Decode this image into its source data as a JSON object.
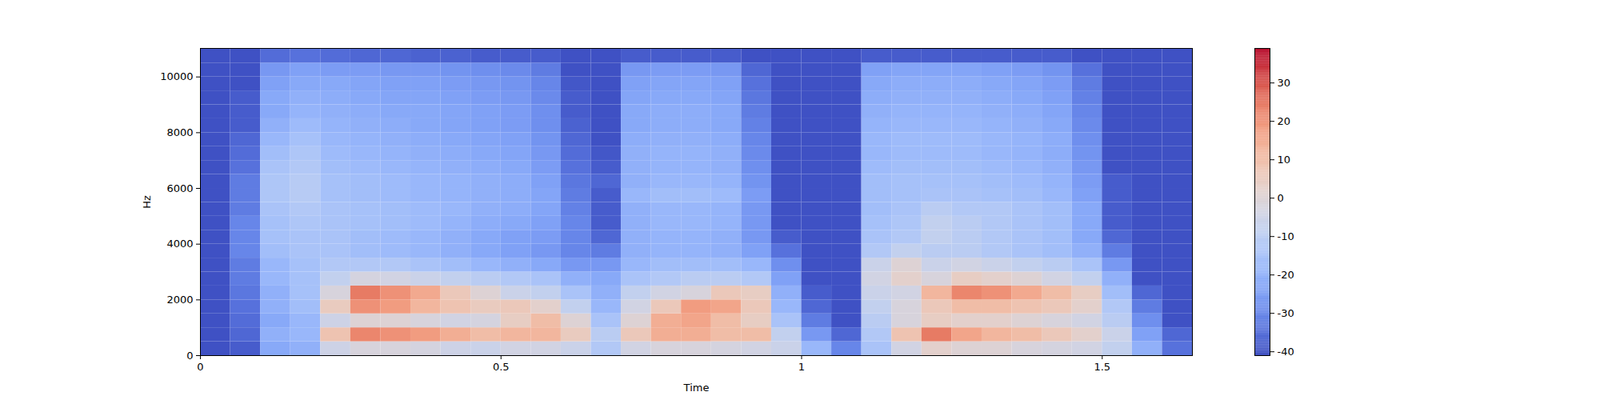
{
  "chart_data": {
    "type": "heatmap",
    "x_label": "Time",
    "y_label": "Hz",
    "xlim": [
      0,
      1.65
    ],
    "ylim": [
      0,
      11025
    ],
    "xticks": [
      0,
      0.5,
      1,
      1.5
    ],
    "yticks": [
      0,
      2000,
      4000,
      6000,
      8000,
      10000
    ],
    "time_bins": [
      0,
      0.05,
      0.1,
      0.15,
      0.2,
      0.25,
      0.3,
      0.35,
      0.4,
      0.45,
      0.5,
      0.55,
      0.6,
      0.65,
      0.7,
      0.75,
      0.8,
      0.85,
      0.9,
      0.95,
      1,
      1.05,
      1.1,
      1.15,
      1.2,
      1.25,
      1.3,
      1.35,
      1.4,
      1.45,
      1.5,
      1.55,
      1.6,
      1.65
    ],
    "freq_bins": [
      0,
      500,
      1000,
      1500,
      2000,
      2500,
      3000,
      3500,
      4000,
      4500,
      5000,
      5500,
      6000,
      6500,
      7000,
      7500,
      8000,
      8500,
      9000,
      9500,
      10000,
      10500,
      11025
    ],
    "values": [
      [
        -40,
        -40,
        -40,
        -40,
        -40,
        -40,
        -40,
        -40,
        -40,
        -40,
        -40,
        -40,
        -40,
        -40,
        -40,
        -40,
        -40,
        -40,
        -40,
        -40,
        -40,
        -40
      ],
      [
        -38,
        -36,
        -35,
        -34,
        -33,
        -32,
        -32,
        -30,
        -30,
        -30,
        -32,
        -32,
        -32,
        -34,
        -35,
        -36,
        -38,
        -38,
        -38,
        -40,
        -40,
        -40
      ],
      [
        -22,
        -20,
        -22,
        -20,
        -20,
        -18,
        -18,
        -16,
        -15,
        -15,
        -14,
        -13,
        -13,
        -14,
        -16,
        -18,
        -20,
        -22,
        -22,
        -24,
        -26,
        -35
      ],
      [
        -20,
        -18,
        -18,
        -16,
        -15,
        -15,
        -15,
        -14,
        -14,
        -13,
        -12,
        -11,
        -11,
        -12,
        -13,
        -15,
        -17,
        -19,
        -20,
        -22,
        -24,
        -34
      ],
      [
        -5,
        8,
        -5,
        5,
        -2,
        -8,
        -12,
        -14,
        -14,
        -14,
        -14,
        -15,
        -15,
        -16,
        -17,
        -18,
        -19,
        -20,
        -21,
        -22,
        -25,
        -35
      ],
      [
        -2,
        22,
        0,
        20,
        24,
        -3,
        -12,
        -16,
        -16,
        -15,
        -15,
        -16,
        -16,
        -17,
        -18,
        -19,
        -20,
        -21,
        -22,
        -23,
        -25,
        -36
      ],
      [
        -2,
        20,
        0,
        18,
        20,
        -4,
        -12,
        -17,
        -17,
        -16,
        -16,
        -17,
        -17,
        -18,
        -19,
        -20,
        -21,
        -22,
        -23,
        -24,
        -26,
        -36
      ],
      [
        -3,
        18,
        -2,
        12,
        15,
        -6,
        -14,
        -18,
        -18,
        -17,
        -17,
        -18,
        -18,
        -19,
        -20,
        -21,
        -22,
        -22,
        -23,
        -24,
        -26,
        -37
      ],
      [
        -5,
        14,
        -4,
        8,
        6,
        -8,
        -16,
        -20,
        -20,
        -19,
        -18,
        -19,
        -19,
        -20,
        -21,
        -22,
        -23,
        -23,
        -24,
        -25,
        -27,
        -37
      ],
      [
        -6,
        10,
        -3,
        5,
        0,
        -10,
        -18,
        -22,
        -22,
        -21,
        -20,
        -20,
        -20,
        -21,
        -22,
        -23,
        -24,
        -24,
        -25,
        -26,
        -28,
        -38
      ],
      [
        -4,
        12,
        4,
        6,
        -6,
        -12,
        -20,
        -24,
        -24,
        -22,
        -21,
        -21,
        -21,
        -22,
        -23,
        -24,
        -25,
        -25,
        -26,
        -27,
        -29,
        -38
      ],
      [
        -4,
        12,
        10,
        2,
        -8,
        -14,
        -22,
        -26,
        -25,
        -24,
        -23,
        -23,
        -24,
        -25,
        -26,
        -27,
        -28,
        -28,
        -29,
        -30,
        -32,
        -38
      ],
      [
        -6,
        5,
        0,
        -8,
        -14,
        -20,
        -26,
        -30,
        -30,
        -30,
        -31,
        -32,
        -33,
        -34,
        -35,
        -36,
        -37,
        -38,
        -38,
        -39,
        -40,
        -40
      ],
      [
        -12,
        -10,
        -14,
        -18,
        -20,
        -22,
        -26,
        -32,
        -36,
        -38,
        -38,
        -38,
        -36,
        -38,
        -39,
        -40,
        -40,
        -40,
        -40,
        -40,
        -40,
        -40
      ],
      [
        -4,
        6,
        0,
        -4,
        -8,
        -14,
        -18,
        -20,
        -20,
        -20,
        -20,
        -18,
        -20,
        -20,
        -20,
        -21,
        -22,
        -22,
        -23,
        -24,
        -26,
        -38
      ],
      [
        -2,
        14,
        14,
        6,
        -4,
        -12,
        -16,
        -19,
        -19,
        -18,
        -18,
        -16,
        -18,
        -19,
        -19,
        -20,
        -21,
        -21,
        -22,
        -23,
        -25,
        -38
      ],
      [
        -2,
        14,
        16,
        18,
        -2,
        -10,
        -16,
        -19,
        -19,
        -18,
        -18,
        -16,
        -18,
        -19,
        -19,
        -20,
        -21,
        -21,
        -22,
        -23,
        -25,
        -38
      ],
      [
        -3,
        10,
        10,
        16,
        6,
        -10,
        -16,
        -20,
        -20,
        -19,
        -19,
        -17,
        -19,
        -20,
        -20,
        -21,
        -22,
        -22,
        -23,
        -24,
        -26,
        -38
      ],
      [
        -4,
        10,
        4,
        6,
        4,
        -12,
        -18,
        -24,
        -26,
        -26,
        -26,
        -25,
        -27,
        -28,
        -29,
        -30,
        -31,
        -32,
        -33,
        -34,
        -36,
        -40
      ],
      [
        -6,
        -8,
        -14,
        -18,
        -20,
        -24,
        -28,
        -34,
        -38,
        -40,
        -40,
        -40,
        -40,
        -40,
        -40,
        -40,
        -40,
        -40,
        -40,
        -40,
        -40,
        -40
      ],
      [
        -18,
        -26,
        -32,
        -36,
        -38,
        -40,
        -40,
        -40,
        -40,
        -40,
        -40,
        -40,
        -40,
        -40,
        -40,
        -40,
        -40,
        -40,
        -40,
        -40,
        -40,
        -40
      ],
      [
        -30,
        -36,
        -40,
        -40,
        -40,
        -40,
        -40,
        -40,
        -40,
        -40,
        -40,
        -40,
        -40,
        -40,
        -40,
        -40,
        -40,
        -40,
        -40,
        -40,
        -40,
        -40
      ],
      [
        -14,
        -12,
        -10,
        -8,
        -6,
        -4,
        -6,
        -12,
        -14,
        -15,
        -16,
        -16,
        -16,
        -17,
        -18,
        -18,
        -19,
        -20,
        -21,
        -22,
        -24,
        -38
      ],
      [
        -4,
        8,
        -2,
        -2,
        -4,
        2,
        0,
        -8,
        -12,
        -13,
        -14,
        -15,
        -15,
        -16,
        -17,
        -17,
        -18,
        -19,
        -20,
        -21,
        -23,
        -38
      ],
      [
        2,
        24,
        4,
        6,
        12,
        -2,
        -6,
        -10,
        -8,
        -8,
        -10,
        -14,
        -15,
        -16,
        -17,
        -17,
        -18,
        -19,
        -20,
        -21,
        -23,
        -38
      ],
      [
        0,
        16,
        2,
        10,
        22,
        4,
        -4,
        -10,
        -10,
        -10,
        -12,
        -14,
        -15,
        -16,
        -17,
        -17,
        -18,
        -19,
        -20,
        -21,
        -23,
        -38
      ],
      [
        0,
        12,
        2,
        10,
        20,
        2,
        -6,
        -12,
        -12,
        -12,
        -12,
        -15,
        -16,
        -17,
        -18,
        -18,
        -19,
        -20,
        -21,
        -22,
        -24,
        -38
      ],
      [
        -2,
        10,
        0,
        8,
        15,
        0,
        -8,
        -14,
        -14,
        -14,
        -14,
        -16,
        -17,
        -18,
        -19,
        -19,
        -20,
        -21,
        -22,
        -23,
        -25,
        -38
      ],
      [
        -3,
        6,
        -2,
        6,
        10,
        -4,
        -10,
        -16,
        -16,
        -16,
        -16,
        -18,
        -19,
        -20,
        -21,
        -21,
        -22,
        -23,
        -24,
        -25,
        -27,
        -38
      ],
      [
        -4,
        2,
        -4,
        2,
        4,
        -8,
        -14,
        -20,
        -22,
        -22,
        -22,
        -24,
        -25,
        -26,
        -27,
        -28,
        -29,
        -30,
        -31,
        -32,
        -34,
        -40
      ],
      [
        -8,
        -6,
        -10,
        -12,
        -16,
        -20,
        -26,
        -32,
        -36,
        -38,
        -38,
        -38,
        -38,
        -40,
        -40,
        -40,
        -40,
        -40,
        -40,
        -40,
        -40,
        -40
      ],
      [
        -20,
        -24,
        -28,
        -32,
        -36,
        -40,
        -40,
        -40,
        -40,
        -40,
        -40,
        -40,
        -40,
        -40,
        -40,
        -40,
        -40,
        -40,
        -40,
        -40,
        -40,
        -40
      ],
      [
        -34,
        -36,
        -40,
        -40,
        -40,
        -40,
        -40,
        -40,
        -40,
        -40,
        -40,
        -40,
        -40,
        -40,
        -40,
        -40,
        -40,
        -40,
        -40,
        -40,
        -40,
        -40
      ]
    ],
    "colorbar": {
      "range": [
        -41,
        39
      ],
      "ticks": [
        -40,
        -30,
        -20,
        -10,
        0,
        10,
        20,
        30
      ]
    }
  }
}
